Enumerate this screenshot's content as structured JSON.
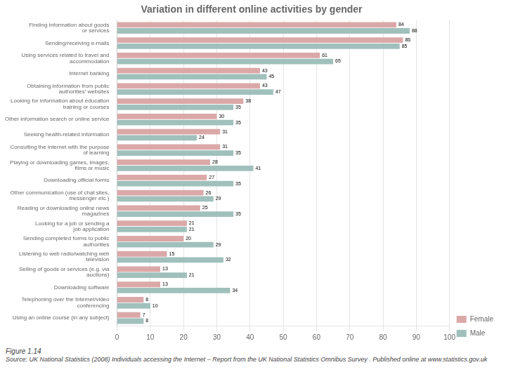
{
  "chart_data": {
    "type": "bar",
    "orientation": "horizontal",
    "title": "Variation in different online activities by gender",
    "annotations": [
      "Figure 1.14",
      "Source: UK National Statistics (2008) Individuals accessing the Internet – Report from the UK National Statistics Omnibus Survey . Published online at www.statistics.gov.uk"
    ],
    "categories": [
      "Finding information about goods\nor services",
      "Sending/receiving e-mails",
      "Using services related to travel and\naccommodation",
      "Internet banking",
      "Obtaining information from public\nauthorities' websites",
      "Looking for information about education\ntraining or courses",
      "Other information search or online service",
      "Seeking health-related information",
      "Consulting the internet with the purpose\nof learning",
      "Playing or downloading games, images,\nfilms or music",
      "Downloading official forms",
      "Other communication (use of chat sites,\nmessenger etc.)",
      "Reading or downloading online news\nmagazines",
      "Looking for a job or sending a\njob application",
      "Sending completed forms to public\nauthorities",
      "Listening to web radio/watching web\ntelevision",
      "Selling of goods or services (e.g. via\nauctions)",
      "Downloading software",
      "Telephoning over the Internet/video\nconferencing",
      "Using an online course (in any subject)"
    ],
    "series": [
      {
        "name": "Female",
        "color": "#dba8a8",
        "values": [
          84,
          86,
          61,
          43,
          43,
          38,
          30,
          31,
          31,
          28,
          27,
          26,
          25,
          21,
          20,
          15,
          13,
          13,
          8,
          7
        ]
      },
      {
        "name": "Male",
        "color": "#a0c0bc",
        "values": [
          88,
          85,
          65,
          45,
          47,
          35,
          35,
          24,
          35,
          41,
          35,
          29,
          35,
          21,
          29,
          32,
          21,
          34,
          10,
          8
        ]
      }
    ],
    "xlim": [
      0,
      100
    ],
    "xticks": [
      0,
      10,
      20,
      30,
      40,
      50,
      60,
      70,
      80,
      90,
      100
    ],
    "grid": true,
    "legend": "lower right",
    "data_labels": true
  }
}
